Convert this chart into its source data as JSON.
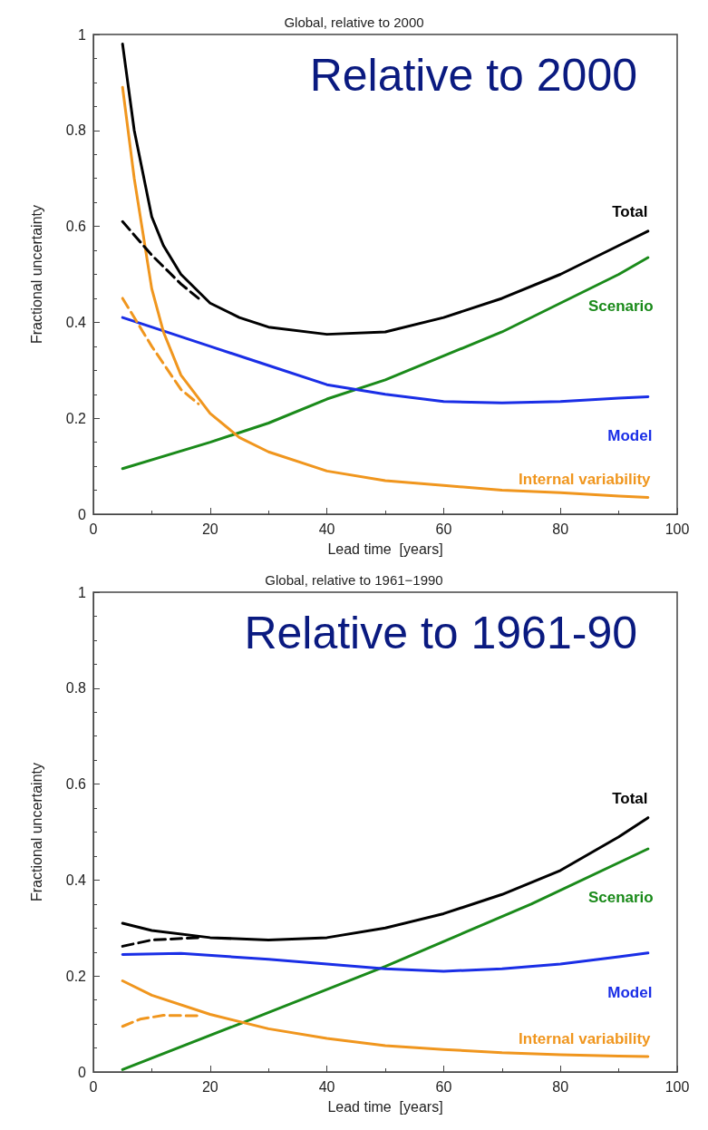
{
  "chart_data": [
    {
      "type": "line",
      "title": "Global, relative to 2000",
      "xlabel": "Lead time  [years]",
      "ylabel": "Fractional uncertainty",
      "annotations": [
        "Relative to 2000"
      ],
      "xlim": [
        0,
        100
      ],
      "xticks": [
        0,
        20,
        40,
        60,
        80,
        100
      ],
      "ylim": [
        0,
        1
      ],
      "yticks": [
        0,
        0.2,
        0.4,
        0.6,
        0.8,
        1
      ],
      "grid": false,
      "legend": false,
      "marker": "none",
      "series": [
        {
          "name": "Total",
          "color": "#000000",
          "line_style": "solid",
          "x": [
            5,
            7,
            10,
            12,
            15,
            20,
            25,
            30,
            40,
            50,
            60,
            70,
            80,
            90,
            95
          ],
          "values": [
            0.98,
            0.8,
            0.62,
            0.56,
            0.5,
            0.44,
            0.41,
            0.39,
            0.375,
            0.38,
            0.41,
            0.45,
            0.5,
            0.56,
            0.59
          ]
        },
        {
          "name": "Scenario",
          "color": "#1a8a1a",
          "line_style": "solid",
          "x": [
            5,
            20,
            30,
            40,
            50,
            60,
            70,
            80,
            90,
            95
          ],
          "values": [
            0.095,
            0.15,
            0.19,
            0.24,
            0.28,
            0.33,
            0.38,
            0.44,
            0.5,
            0.535
          ]
        },
        {
          "name": "Model",
          "color": "#1a2ee6",
          "line_style": "solid",
          "x": [
            5,
            10,
            20,
            30,
            40,
            50,
            60,
            70,
            80,
            90,
            95
          ],
          "values": [
            0.41,
            0.39,
            0.35,
            0.31,
            0.27,
            0.25,
            0.235,
            0.232,
            0.235,
            0.242,
            0.245
          ]
        },
        {
          "name": "Internal variability",
          "color": "#f0961e",
          "line_style": "solid",
          "x": [
            5,
            7,
            10,
            12,
            15,
            20,
            25,
            30,
            40,
            50,
            60,
            70,
            80,
            90,
            95
          ],
          "values": [
            0.89,
            0.7,
            0.47,
            0.38,
            0.29,
            0.21,
            0.16,
            0.13,
            0.09,
            0.07,
            0.06,
            0.05,
            0.045,
            0.038,
            0.035
          ]
        },
        {
          "color": "#000000",
          "line_style": "dashed",
          "x": [
            5,
            10,
            15,
            18
          ],
          "values": [
            0.61,
            0.54,
            0.48,
            0.45
          ]
        },
        {
          "color": "#f0961e",
          "line_style": "dashed",
          "x": [
            5,
            10,
            15,
            18
          ],
          "values": [
            0.45,
            0.35,
            0.26,
            0.23
          ]
        }
      ]
    },
    {
      "type": "line",
      "title": "Global, relative to 1961−1990",
      "xlabel": "Lead time  [years]",
      "ylabel": "Fractional uncertainty",
      "annotations": [
        "Relative to 1961-90"
      ],
      "xlim": [
        0,
        100
      ],
      "xticks": [
        0,
        20,
        40,
        60,
        80,
        100
      ],
      "ylim": [
        0,
        1
      ],
      "yticks": [
        0,
        0.2,
        0.4,
        0.6,
        0.8,
        1
      ],
      "grid": false,
      "legend": false,
      "marker": "none",
      "series": [
        {
          "name": "Total",
          "color": "#000000",
          "line_style": "solid",
          "x": [
            5,
            10,
            20,
            30,
            40,
            50,
            60,
            70,
            80,
            90,
            95
          ],
          "values": [
            0.31,
            0.295,
            0.28,
            0.275,
            0.28,
            0.3,
            0.33,
            0.37,
            0.42,
            0.49,
            0.53
          ]
        },
        {
          "name": "Scenario",
          "color": "#1a8a1a",
          "line_style": "solid",
          "x": [
            5,
            25,
            50,
            75,
            95
          ],
          "values": [
            0.005,
            0.1,
            0.22,
            0.35,
            0.465
          ]
        },
        {
          "name": "Model",
          "color": "#1a2ee6",
          "line_style": "solid",
          "x": [
            5,
            15,
            30,
            40,
            50,
            60,
            70,
            80,
            90,
            95
          ],
          "values": [
            0.245,
            0.247,
            0.235,
            0.225,
            0.215,
            0.21,
            0.215,
            0.225,
            0.24,
            0.248
          ]
        },
        {
          "name": "Internal variability",
          "color": "#f0961e",
          "line_style": "solid",
          "x": [
            5,
            10,
            20,
            30,
            40,
            50,
            60,
            70,
            80,
            90,
            95
          ],
          "values": [
            0.19,
            0.16,
            0.12,
            0.09,
            0.07,
            0.055,
            0.047,
            0.04,
            0.036,
            0.033,
            0.032
          ]
        },
        {
          "color": "#000000",
          "line_style": "dashed",
          "x": [
            5,
            10,
            18
          ],
          "values": [
            0.262,
            0.275,
            0.28
          ]
        },
        {
          "color": "#f0961e",
          "line_style": "dashed",
          "x": [
            5,
            8,
            12,
            18
          ],
          "values": [
            0.095,
            0.11,
            0.118,
            0.117
          ]
        }
      ]
    }
  ]
}
